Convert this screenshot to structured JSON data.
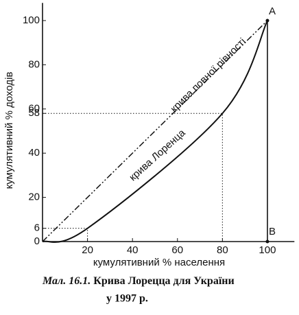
{
  "chart_data": {
    "type": "line",
    "x_label": "кумулятивний % населення",
    "y_label": "кумулятивний % доходів",
    "xlim": [
      0,
      112
    ],
    "ylim": [
      0,
      108
    ],
    "xticks": [
      20,
      40,
      60,
      80,
      100
    ],
    "yticks": [
      0,
      6,
      20,
      40,
      58,
      60,
      80,
      100
    ],
    "series": [
      {
        "name": "крива повної рівності",
        "color": "#111",
        "style": "dashdot",
        "x": [
          0,
          100
        ],
        "values": [
          0,
          100
        ]
      },
      {
        "name": "крива Лоренца",
        "color": "#111",
        "style": "smooth",
        "x": [
          0,
          20,
          80,
          100
        ],
        "values": [
          0,
          6,
          58,
          100
        ]
      }
    ],
    "points": [
      {
        "label": "A",
        "x": 100,
        "y": 100
      },
      {
        "label": "B",
        "x": 100,
        "y": 0
      }
    ],
    "caption": {
      "number": "Мал. 16.1.",
      "text": "Крива Лорецца для України",
      "line2": "у 1997 р."
    }
  }
}
